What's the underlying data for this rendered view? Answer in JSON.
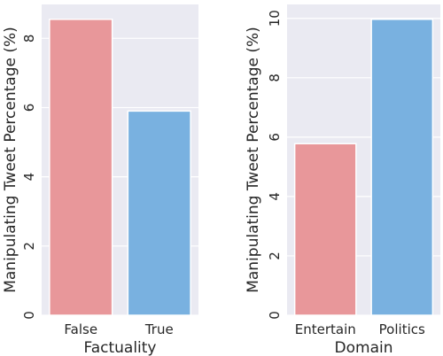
{
  "chart_data": [
    {
      "type": "bar",
      "categories": [
        "False",
        "True"
      ],
      "values": [
        8.55,
        5.9
      ],
      "colors": [
        "#e8979a",
        "#79b1e0"
      ],
      "xlabel": "Factuality",
      "ylabel": "Manipulating Tweet Percentage (%)",
      "ylim": [
        0,
        8.98
      ],
      "yticks": [
        0,
        2,
        4,
        6,
        8
      ],
      "grid": true,
      "legend": "none"
    },
    {
      "type": "bar",
      "categories": [
        "Entertain",
        "Politics"
      ],
      "values": [
        5.78,
        9.97
      ],
      "colors": [
        "#e8979a",
        "#79b1e0"
      ],
      "xlabel": "Domain",
      "ylabel": "Manipulating Tweet Percentage (%)",
      "ylim": [
        0,
        10.47
      ],
      "yticks": [
        0,
        2,
        4,
        6,
        8,
        10
      ],
      "grid": true,
      "legend": "none"
    }
  ]
}
